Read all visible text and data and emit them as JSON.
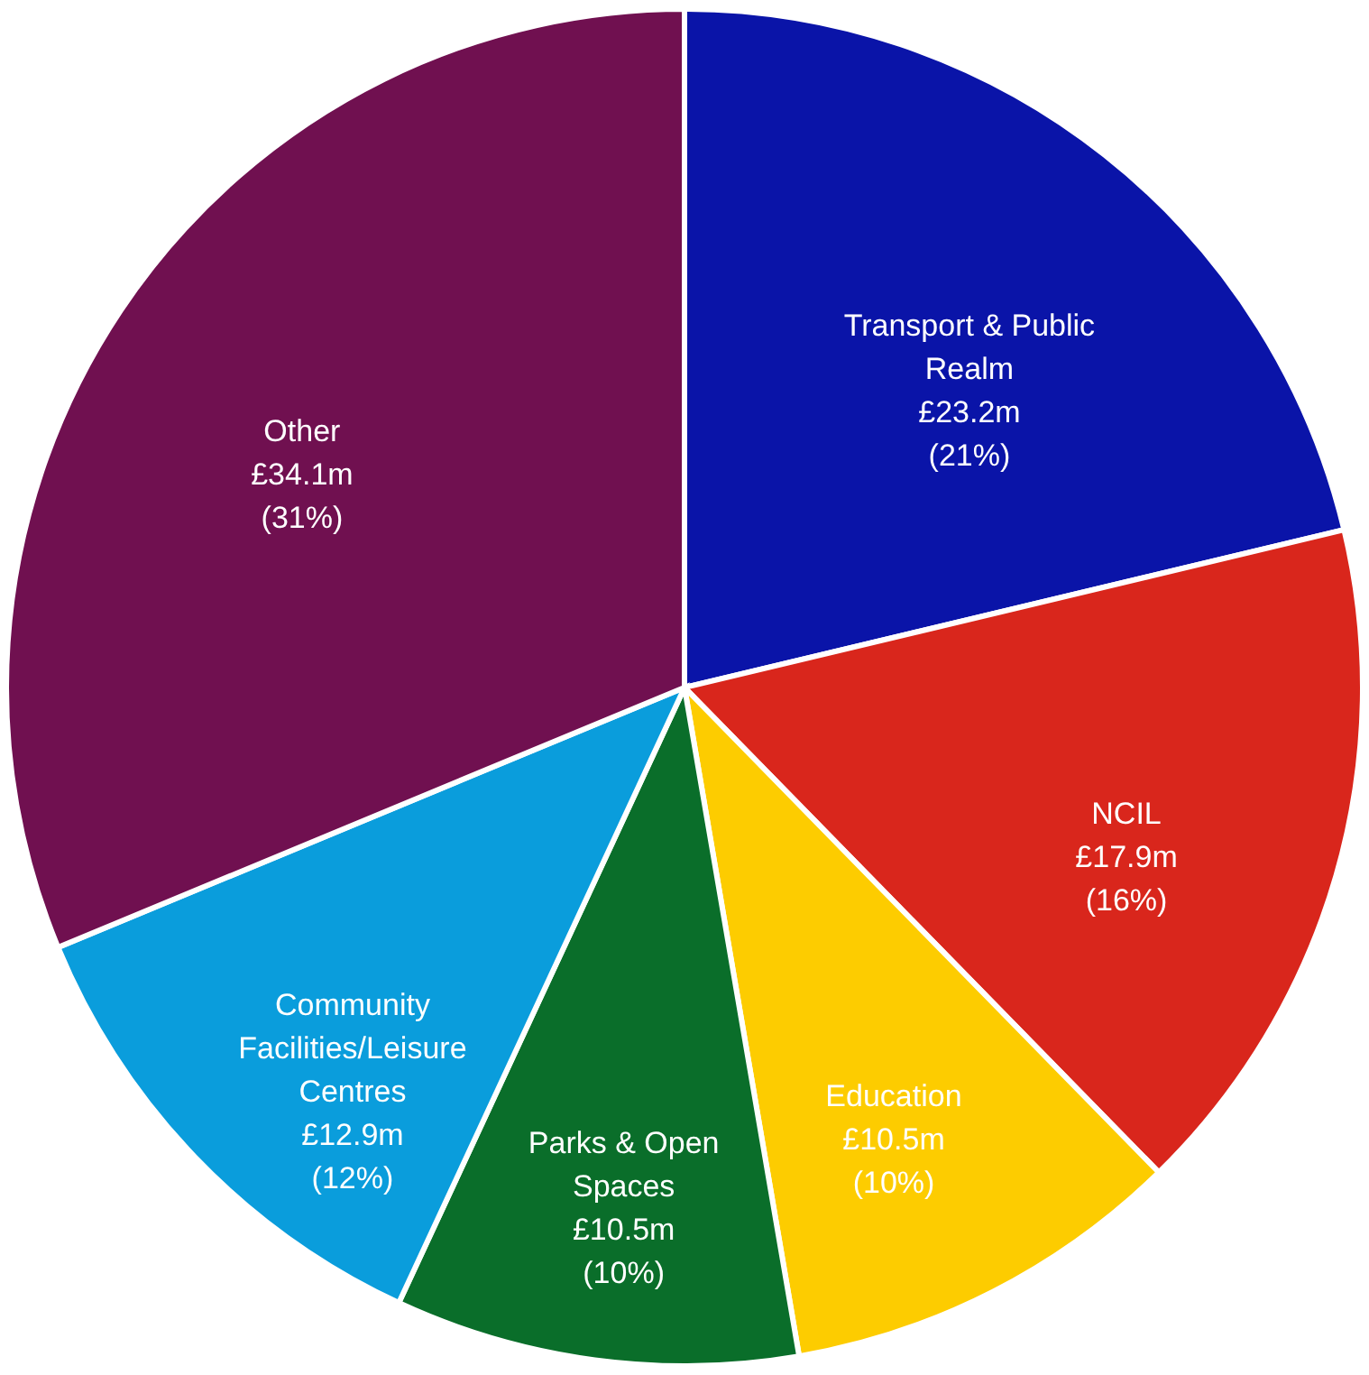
{
  "chart_data": {
    "type": "pie",
    "categories": [
      "Transport & Public Realm",
      "NCIL",
      "Education",
      "Parks & Open Spaces",
      "Community Facilities/Leisure Centres",
      "Other"
    ],
    "values": [
      23.2,
      17.9,
      10.5,
      10.5,
      12.9,
      34.1
    ],
    "value_labels": [
      "£23.2m",
      "£17.9m",
      "£10.5m",
      "£10.5m",
      "£12.9m",
      "£34.1m"
    ],
    "annotations": [
      {
        "text": "(21%)",
        "x": "Transport & Public Realm"
      },
      {
        "text": "(16%)",
        "x": "NCIL"
      },
      {
        "text": "(10%)",
        "x": "Education"
      },
      {
        "text": "(10%)",
        "x": "Parks & Open Spaces"
      },
      {
        "text": "(12%)",
        "x": "Community Facilities/Leisure Centres"
      },
      {
        "text": "(31%)",
        "x": "Other"
      }
    ],
    "colors": [
      "#0a14a8",
      "#d9261c",
      "#fdcc00",
      "#0a6e2a",
      "#0a9ddc",
      "#701050"
    ]
  }
}
